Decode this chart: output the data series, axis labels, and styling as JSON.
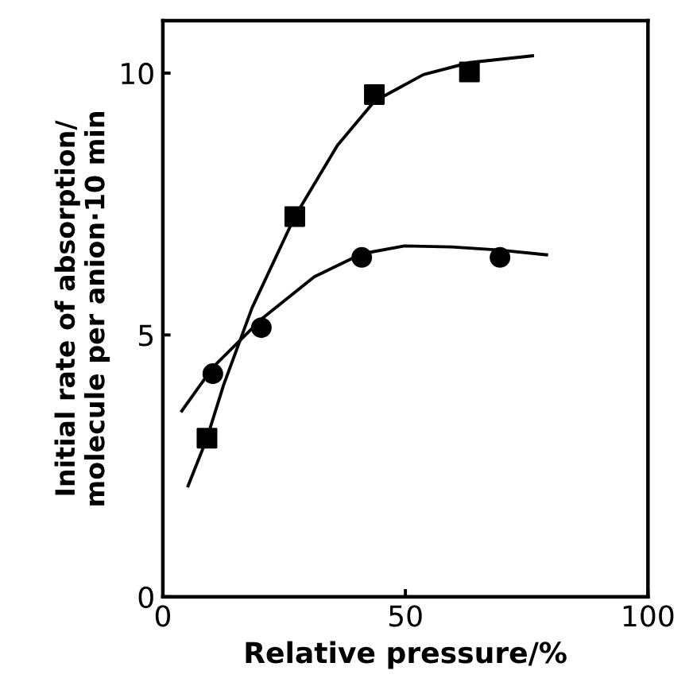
{
  "chart_data": {
    "type": "scatter",
    "xlabel": "Relative pressure/%",
    "ylabel": "Initial rate of absorption/\nmolecule per anion·10 min",
    "xlim": [
      0,
      100
    ],
    "ylim": [
      0,
      11
    ],
    "xticks": [
      0,
      50,
      100
    ],
    "yticks": [
      0,
      5,
      10
    ],
    "grid": false,
    "legend": false,
    "series": [
      {
        "type": "line",
        "color": "#000000",
        "marker": "none",
        "x": [
          5.2,
          9.1,
          12.5,
          18.4,
          27.2,
          36.0,
          43.6,
          53.7,
          63.2,
          76.2
        ],
        "values": [
          2.12,
          3.03,
          4.04,
          5.52,
          7.26,
          8.62,
          9.46,
          9.97,
          10.2,
          10.33
        ]
      },
      {
        "type": "line",
        "color": "#000000",
        "marker": "none",
        "x": [
          3.9,
          10.3,
          20.3,
          31.2,
          41.0,
          49.8,
          59.5,
          69.5,
          79.1
        ],
        "values": [
          3.55,
          4.38,
          5.3,
          6.11,
          6.55,
          6.7,
          6.68,
          6.62,
          6.53
        ]
      },
      {
        "color": "#000000",
        "marker": "square",
        "x": [
          9.1,
          27.2,
          43.6,
          63.2
        ],
        "values": [
          3.03,
          7.26,
          9.59,
          10.02
        ]
      },
      {
        "color": "#000000",
        "marker": "circle",
        "x": [
          10.3,
          20.3,
          41.0,
          69.5
        ],
        "values": [
          4.26,
          5.14,
          6.48,
          6.48
        ]
      }
    ]
  }
}
